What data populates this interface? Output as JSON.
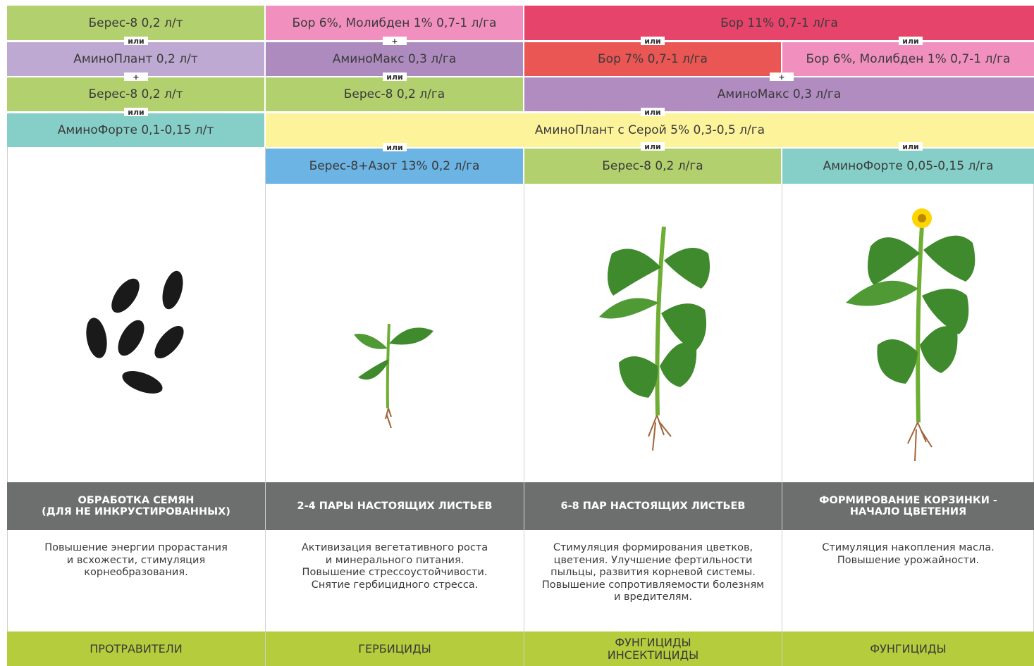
{
  "cells": [
    "Берес-8 0,2 л/т",
    "Бор 6%, Молибден 1% 0,7-1 л/га",
    "Бор 11% 0,7-1 л/га",
    "АминоПлант 0,2 л/т",
    "АминоМакс 0,3 л/га",
    "Бор 7% 0,7-1 л/га",
    "Бор 6%, Молибден 1% 0,7-1 л/га",
    "Берес-8 0,2 л/т",
    "Берес-8 0,2 л/га",
    "АминоМакс 0,3 л/га",
    "АминоФорте 0,1-0,15 л/т",
    "АминоПлант с Серой 5% 0,3-0,5 л/га",
    "Берес-8+Азот 13% 0,2 л/га",
    "Берес-8 0,2 л/га",
    "АминоФорте 0,05-0,15 л/га"
  ],
  "connectors": [
    "или",
    "+",
    "или",
    "+",
    "или",
    "или",
    "или",
    "или",
    "+",
    "или",
    "или",
    "или"
  ],
  "stages": [
    {
      "title": [
        "ОБРАБОТКА СЕМЯН",
        "(ДЛЯ НЕ ИНКРУСТИРОВАННЫХ)"
      ],
      "description": [
        "Повышение энергии прорастания",
        "и всхожести, стимуляция",
        "корнеобразования."
      ],
      "category": [
        "ПРОТРАВИТЕЛИ"
      ]
    },
    {
      "title": [
        "2-4 ПАРЫ НАСТОЯЩИХ ЛИСТЬЕВ"
      ],
      "description": [
        "Активизация вегетативного роста",
        "и минерального питания.",
        "Повышение стрессоустойчивости.",
        "Снятие гербицидного стресса."
      ],
      "category": [
        "ГЕРБИЦИДЫ"
      ]
    },
    {
      "title": [
        "6-8 ПАР НАСТОЯЩИХ ЛИСТЬЕВ"
      ],
      "description": [
        "Стимуляция формирования цветков,",
        "цветения. Улучшение фертильности",
        "пыльцы, развития корневой системы.",
        "Повышение сопротивляемости болезням",
        "и вредителям."
      ],
      "category": [
        "ФУНГИЦИДЫ",
        "ИНСЕКТИЦИДЫ"
      ]
    },
    {
      "title": [
        "ФОРМИРОВАНИЕ КОРЗИНКИ -",
        "НАЧАЛО ЦВЕТЕНИЯ"
      ],
      "description": [
        "Стимуляция накопления масла.",
        "Повышение урожайности."
      ],
      "category": [
        "ФУНГИЦИДЫ"
      ]
    }
  ]
}
